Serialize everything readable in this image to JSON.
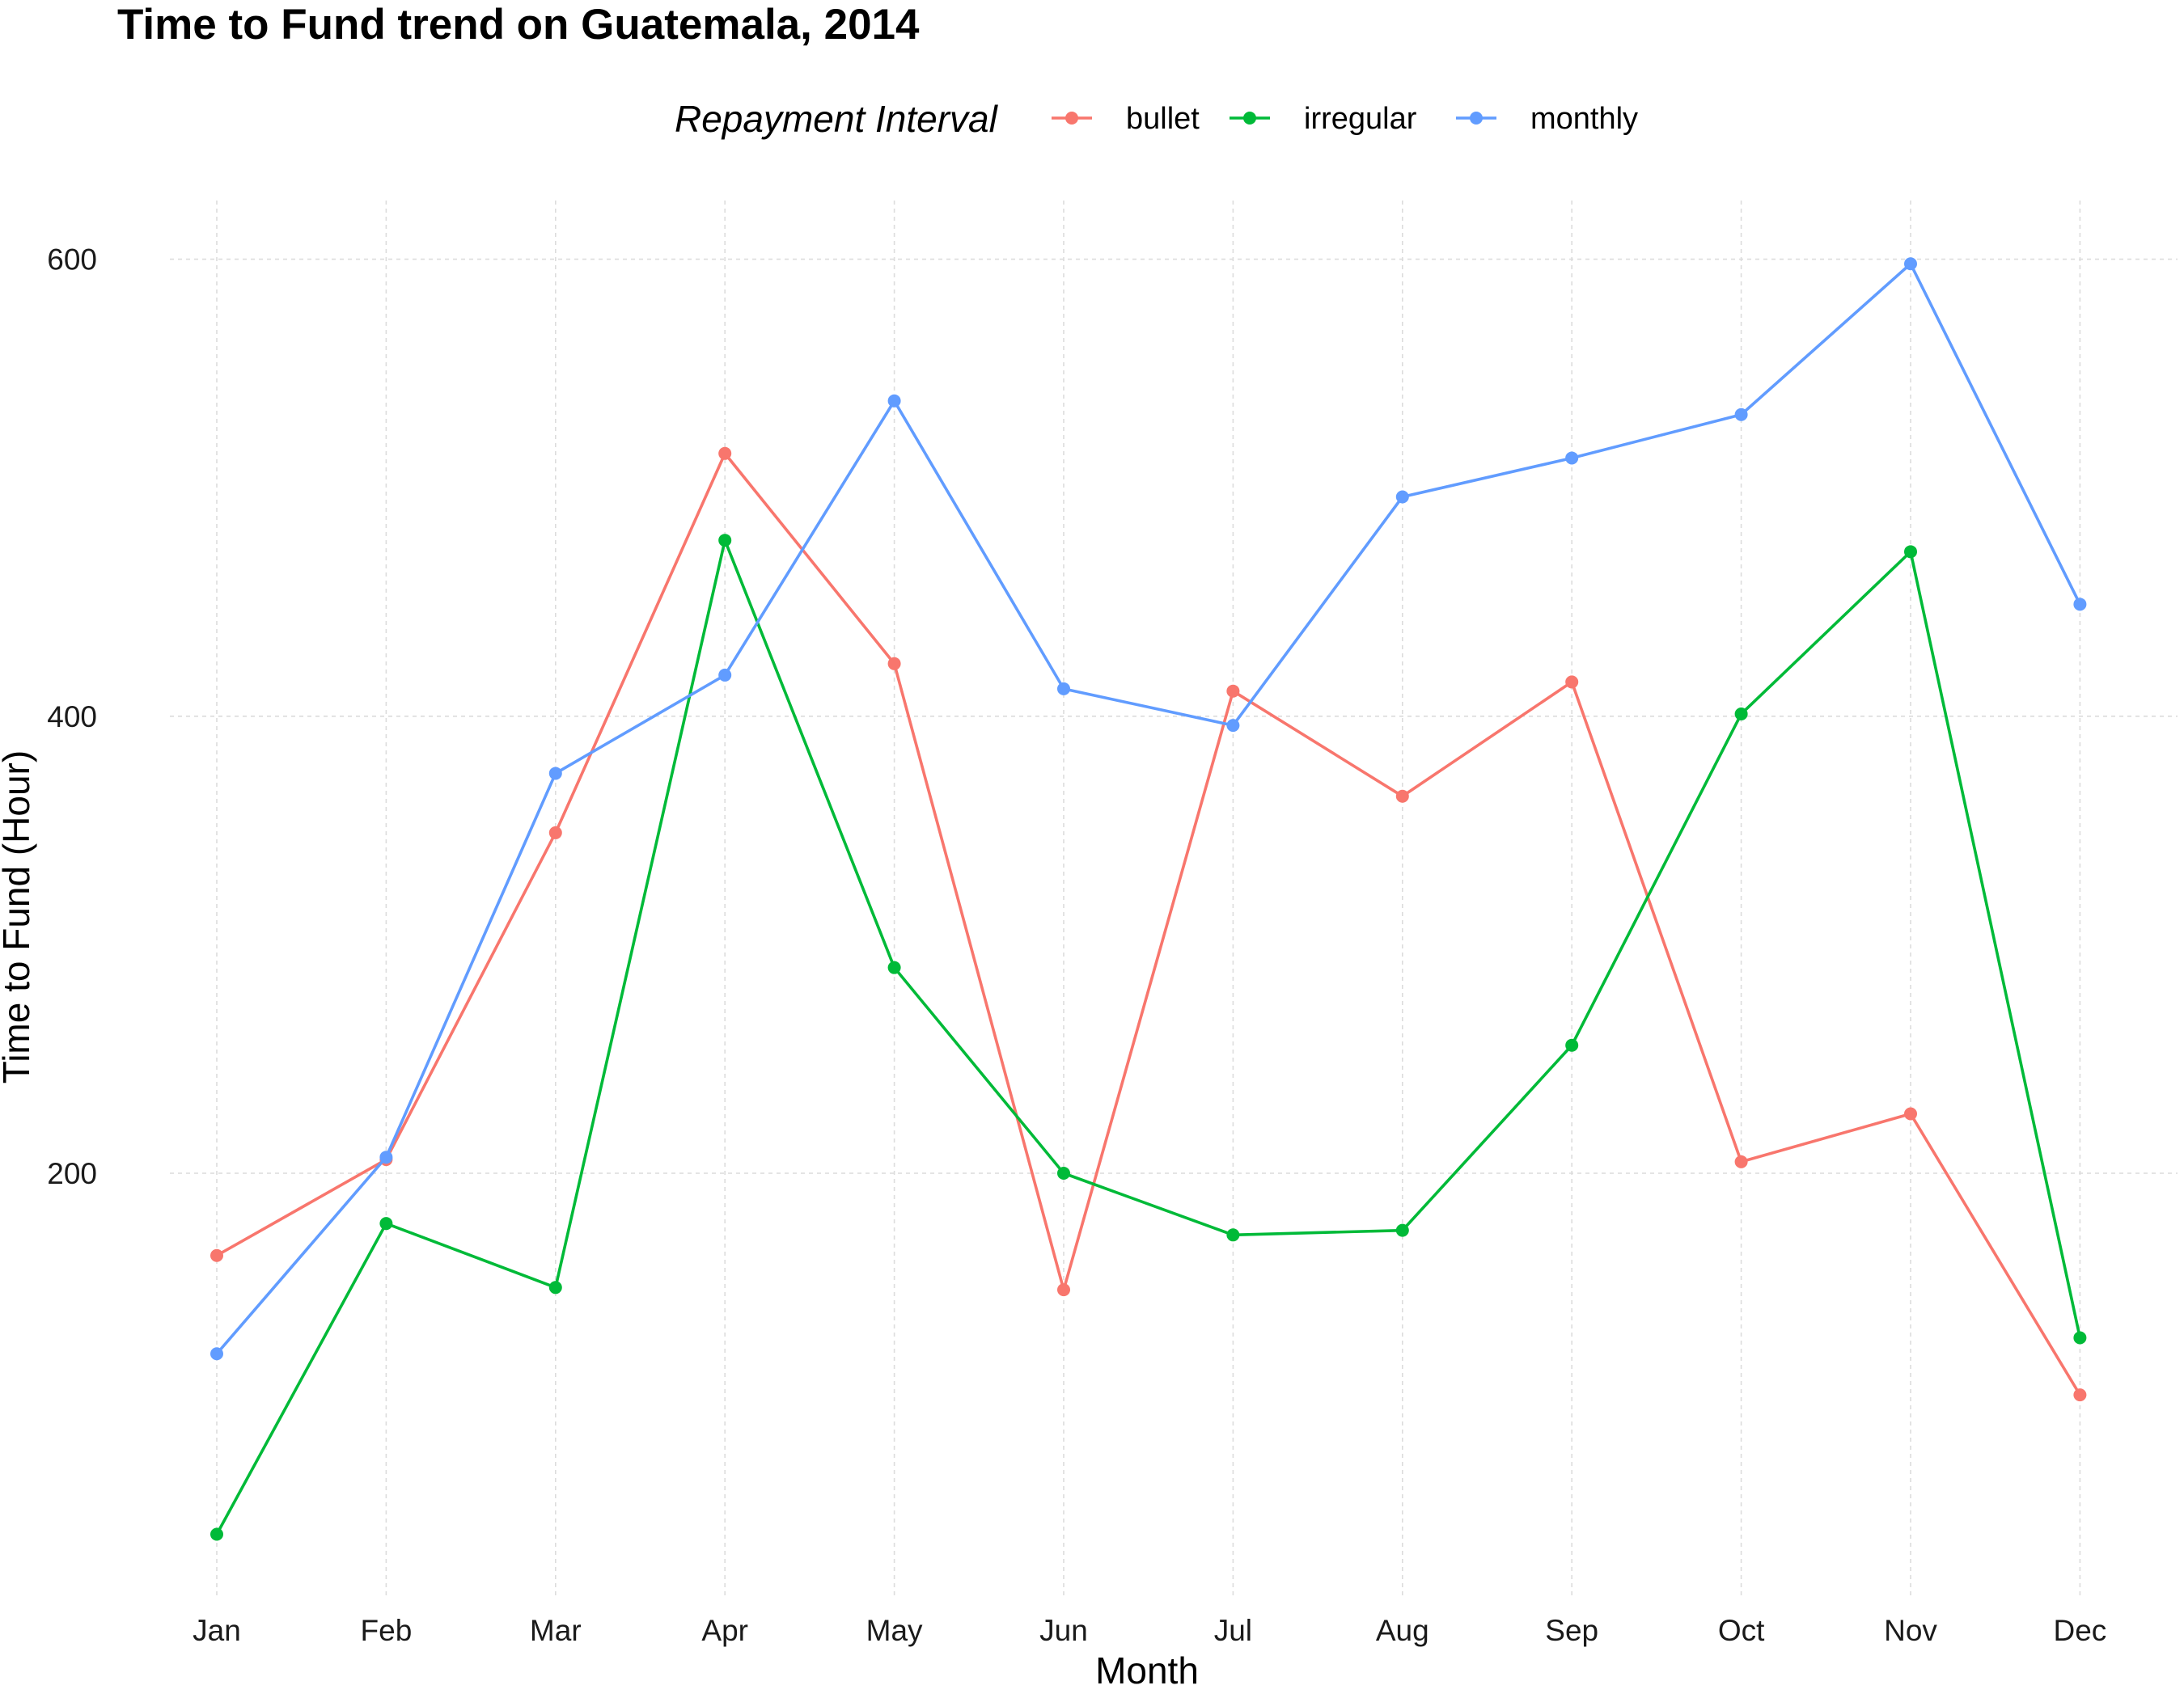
{
  "chart_data": {
    "type": "line",
    "title": "Time to Fund trend on Guatemala, 2014",
    "xlabel": "Month",
    "ylabel": "Time to Fund (Hour)",
    "legend_title": "Repayment Interval",
    "legend_position": "top",
    "grid": true,
    "ylim": [
      30,
      624
    ],
    "yticks": [
      200,
      400,
      600
    ],
    "categories": [
      "Jan",
      "Feb",
      "Mar",
      "Apr",
      "May",
      "Jun",
      "Jul",
      "Aug",
      "Sep",
      "Oct",
      "Nov",
      "Dec"
    ],
    "series": [
      {
        "name": "bullet",
        "color": "#F8766D",
        "values": [
          164,
          206,
          349,
          515,
          423,
          149,
          411,
          365,
          415,
          205,
          226,
          103
        ]
      },
      {
        "name": "irregular",
        "color": "#00BA38",
        "values": [
          42,
          178,
          150,
          477,
          290,
          200,
          173,
          175,
          256,
          401,
          472,
          128
        ]
      },
      {
        "name": "monthly",
        "color": "#619CFF",
        "values": [
          121,
          207,
          375,
          418,
          538,
          412,
          396,
          496,
          513,
          532,
          598,
          449
        ]
      }
    ]
  }
}
